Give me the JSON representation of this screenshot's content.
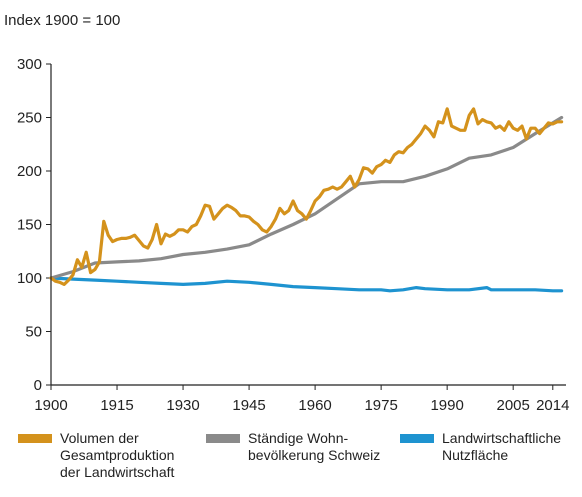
{
  "chart_data": {
    "type": "line",
    "title": "Index 1900 = 100",
    "xlabel": "",
    "ylabel": "",
    "xlim": [
      1900,
      2017
    ],
    "ylim": [
      0,
      300
    ],
    "x_ticks": [
      1900,
      1915,
      1930,
      1945,
      1960,
      1975,
      1990,
      2005,
      2014
    ],
    "x_tick_labels": [
      "1900",
      "1915",
      "1930",
      "1945",
      "1960",
      "1975",
      "1990",
      "2005",
      "2014"
    ],
    "y_ticks": [
      0,
      50,
      100,
      150,
      200,
      250,
      300
    ],
    "y_tick_labels": [
      "0",
      "50",
      "100",
      "150",
      "200",
      "250",
      "300"
    ],
    "grid": false,
    "legend_position": "bottom",
    "series": [
      {
        "name": "Volumen der Gesamtproduktion der Landwirtschaft",
        "color": "#d4921c",
        "x": [
          1900,
          1901,
          1902,
          1903,
          1904,
          1905,
          1906,
          1907,
          1908,
          1909,
          1910,
          1911,
          1912,
          1913,
          1914,
          1915,
          1916,
          1917,
          1918,
          1919,
          1920,
          1921,
          1922,
          1923,
          1924,
          1925,
          1926,
          1927,
          1928,
          1929,
          1930,
          1931,
          1932,
          1933,
          1934,
          1935,
          1936,
          1937,
          1938,
          1939,
          1940,
          1941,
          1942,
          1943,
          1944,
          1945,
          1946,
          1947,
          1948,
          1949,
          1950,
          1951,
          1952,
          1953,
          1954,
          1955,
          1956,
          1957,
          1958,
          1959,
          1960,
          1961,
          1962,
          1963,
          1964,
          1965,
          1966,
          1967,
          1968,
          1969,
          1970,
          1971,
          1972,
          1973,
          1974,
          1975,
          1976,
          1977,
          1978,
          1979,
          1980,
          1981,
          1982,
          1983,
          1984,
          1985,
          1986,
          1987,
          1988,
          1989,
          1990,
          1991,
          1992,
          1993,
          1994,
          1995,
          1996,
          1997,
          1998,
          1999,
          2000,
          2001,
          2002,
          2003,
          2004,
          2005,
          2006,
          2007,
          2008,
          2009,
          2010,
          2011,
          2012,
          2013,
          2014,
          2015,
          2016
        ],
        "values": [
          100,
          97,
          96,
          94,
          98,
          103,
          117,
          110,
          124,
          105,
          108,
          115,
          153,
          140,
          134,
          136,
          137,
          137,
          138,
          140,
          135,
          130,
          128,
          136,
          150,
          132,
          141,
          139,
          141,
          145,
          145,
          143,
          148,
          150,
          158,
          168,
          167,
          155,
          160,
          165,
          168,
          166,
          163,
          158,
          158,
          157,
          153,
          150,
          145,
          143,
          148,
          155,
          165,
          160,
          163,
          172,
          163,
          160,
          155,
          163,
          172,
          176,
          182,
          183,
          185,
          183,
          185,
          190,
          195,
          185,
          192,
          203,
          202,
          198,
          204,
          206,
          210,
          208,
          215,
          218,
          217,
          222,
          225,
          230,
          235,
          242,
          238,
          232,
          246,
          245,
          258,
          242,
          240,
          238,
          238,
          252,
          258,
          244,
          248,
          246,
          245,
          240,
          242,
          238,
          246,
          240,
          238,
          242,
          230,
          240,
          240,
          235,
          240,
          245,
          244,
          246,
          246
        ]
      },
      {
        "name": "Ständige Wohnbevölkerung Schweiz",
        "color": "#8a8a8a",
        "x": [
          1900,
          1905,
          1910,
          1915,
          1920,
          1925,
          1930,
          1935,
          1940,
          1945,
          1950,
          1955,
          1960,
          1965,
          1970,
          1975,
          1980,
          1985,
          1990,
          1995,
          2000,
          2005,
          2010,
          2016
        ],
        "values": [
          100,
          106,
          114,
          115,
          116,
          118,
          122,
          124,
          127,
          131,
          141,
          150,
          160,
          174,
          188,
          190,
          190,
          195,
          202,
          212,
          215,
          222,
          235,
          250
        ]
      },
      {
        "name": "Landwirtschaftliche Nutzfläche",
        "color": "#1e93d0",
        "x": [
          1900,
          1905,
          1910,
          1915,
          1920,
          1925,
          1930,
          1935,
          1940,
          1945,
          1950,
          1955,
          1960,
          1965,
          1970,
          1975,
          1977,
          1980,
          1983,
          1985,
          1990,
          1995,
          1999,
          2000,
          2005,
          2010,
          2014,
          2016
        ],
        "values": [
          100,
          99,
          98,
          97,
          96,
          95,
          94,
          95,
          97,
          96,
          94,
          92,
          91,
          90,
          89,
          89,
          88,
          89,
          91,
          90,
          89,
          89,
          91,
          89,
          89,
          89,
          88,
          88
        ]
      }
    ]
  },
  "legend": {
    "items": [
      {
        "label": "Volumen der\nGesamtproduktion\nder Landwirtschaft",
        "color": "#d4921c"
      },
      {
        "label": "Ständige Wohn-\nbevölkerung Schweiz",
        "color": "#8a8a8a"
      },
      {
        "label": "Landwirtschaftliche\nNutzfläche",
        "color": "#1e93d0"
      }
    ]
  }
}
